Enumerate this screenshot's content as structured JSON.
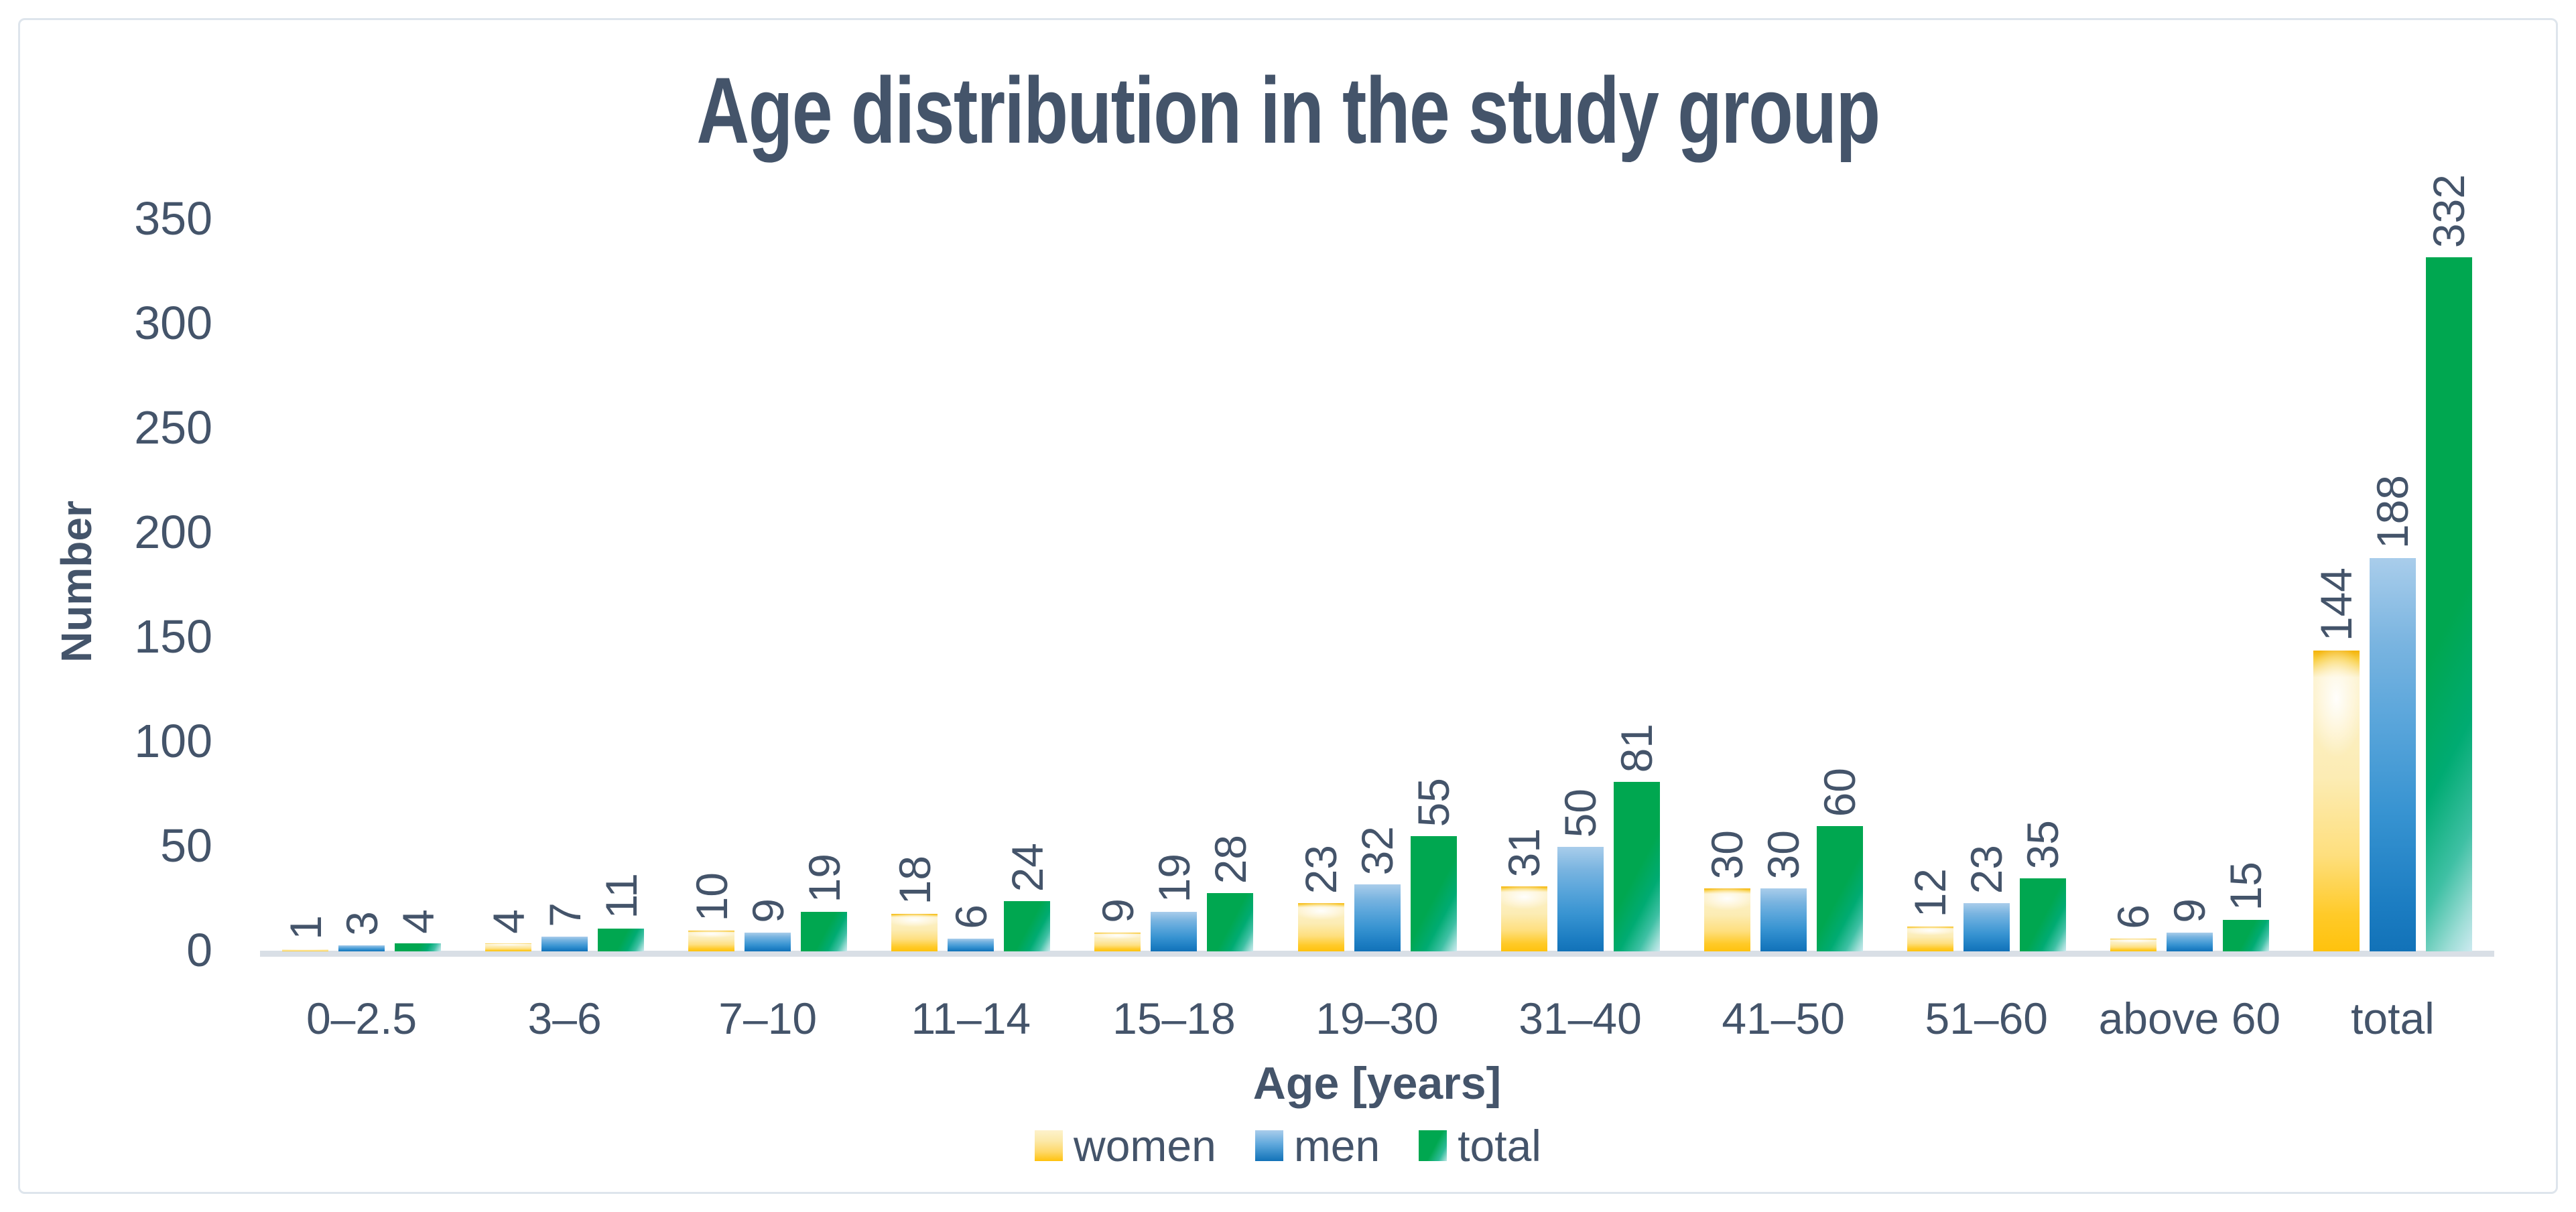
{
  "title": "Age distribution in the study group",
  "text_color": "#44546a",
  "axis_line_color": "#d9dfe6",
  "frame_color": "#dee5ec",
  "y_axis": {
    "title": "Number",
    "ticks": [
      0,
      50,
      100,
      150,
      200,
      250,
      300,
      350
    ]
  },
  "x_axis": {
    "title": "Age [years]"
  },
  "legend": {
    "items": [
      {
        "label": "women",
        "color": "#ffc20d"
      },
      {
        "label": "men",
        "color": "#1272b8"
      },
      {
        "label": "total",
        "color": "#00a750"
      }
    ],
    "position": "bottom"
  },
  "chart_data": {
    "type": "bar",
    "title": "Age distribution in the study group",
    "xlabel": "Age [years]",
    "ylabel": "Number",
    "ylim": [
      0,
      350
    ],
    "grid": false,
    "legend_position": "bottom",
    "data_labels": "rotated-90-above-bars",
    "categories": [
      "0–2.5",
      "3–6",
      "7–10",
      "11–14",
      "15–18",
      "19–30",
      "31–40",
      "41–50",
      "51–60",
      "above 60",
      "total"
    ],
    "series": [
      {
        "name": "women",
        "color": "#ffc20d",
        "gradient": [
          "#fdf2cc",
          "#ffc20d"
        ],
        "values": [
          1,
          4,
          10,
          18,
          9,
          23,
          31,
          30,
          12,
          6,
          144
        ]
      },
      {
        "name": "men",
        "color": "#1272b8",
        "gradient": [
          "#a9cdeb",
          "#1272b8"
        ],
        "values": [
          3,
          7,
          9,
          6,
          19,
          32,
          50,
          30,
          23,
          9,
          188
        ]
      },
      {
        "name": "total",
        "color": "#00a750",
        "gradient": [
          "#00a750",
          "#cdeaf0"
        ],
        "values": [
          4,
          11,
          19,
          24,
          28,
          55,
          81,
          60,
          35,
          15,
          332
        ]
      }
    ]
  }
}
